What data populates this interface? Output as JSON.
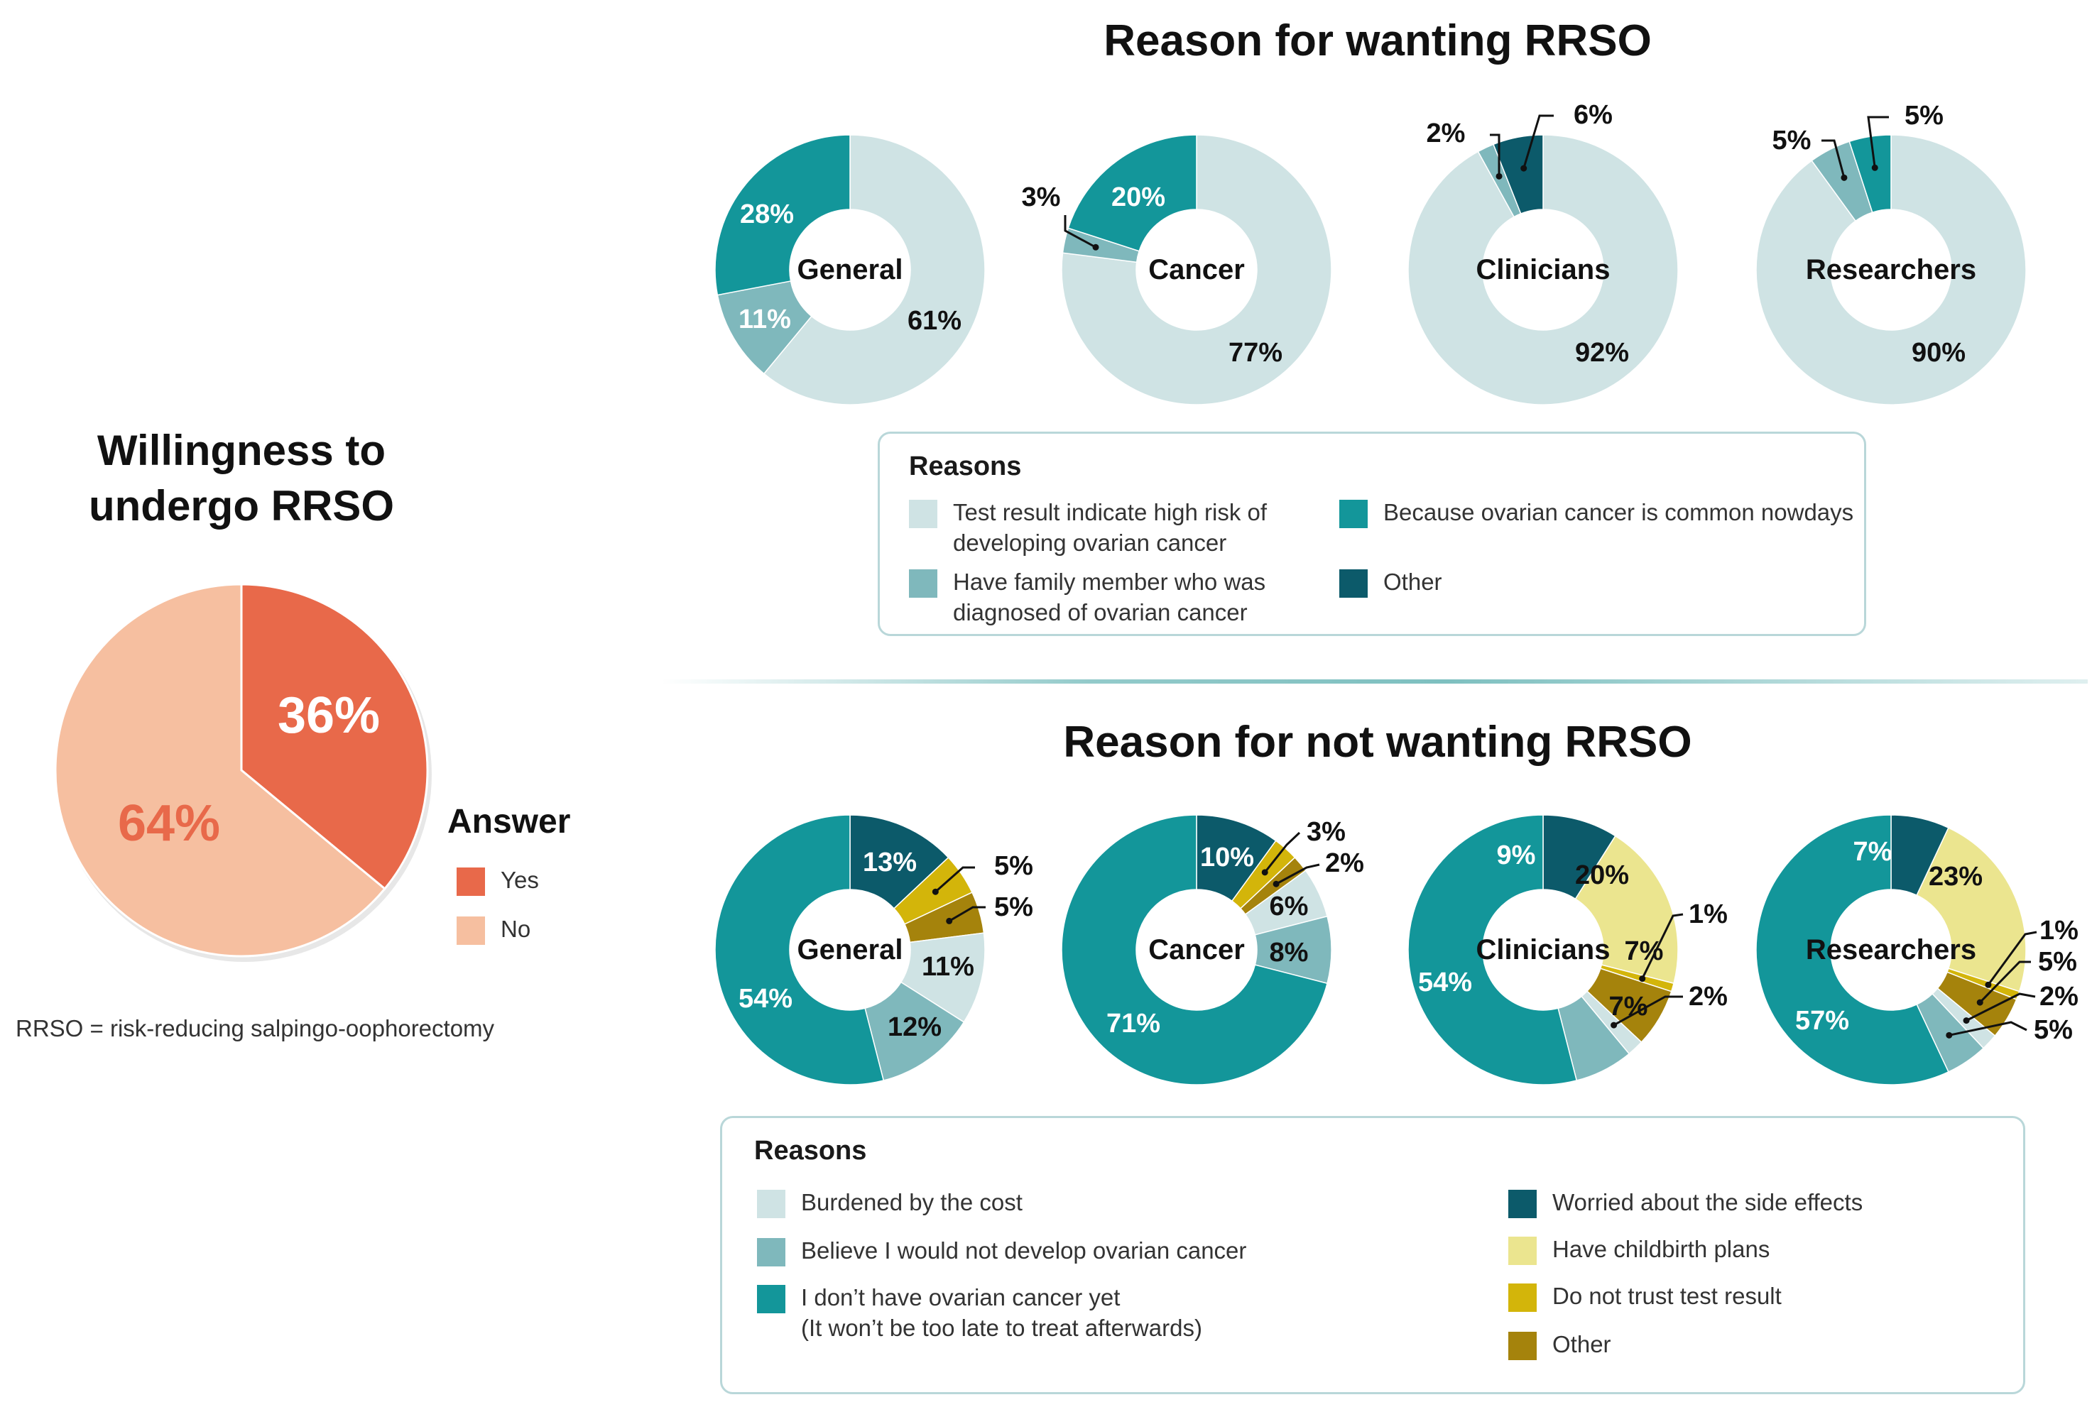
{
  "left": {
    "title_line1": "Willingness to",
    "title_line2": "undergo RRSO",
    "legend_title": "Answer",
    "footnote": "RRSO = risk-reducing salpingo-oophorectomy"
  },
  "top": {
    "title": "Reason for wanting RRSO",
    "legend_title": "Reasons"
  },
  "bottom": {
    "title": "Reason for not wanting RRSO",
    "legend_title": "Reasons"
  },
  "chart_data": [
    {
      "type": "pie",
      "title": "Willingness to undergo RRSO",
      "legend_title": "Answer",
      "slices": [
        {
          "label": "Yes",
          "value": 36,
          "display": "36%",
          "color": "#e8694a"
        },
        {
          "label": "No",
          "value": 64,
          "display": "64%",
          "color": "#f6bfa0"
        }
      ]
    },
    {
      "type": "pie",
      "title": "Reason for wanting RRSO",
      "legend_title": "Reasons",
      "categories": [
        {
          "label": "Test result indicate high risk of\ndeveloping ovarian cancer",
          "color": "#cfe3e4"
        },
        {
          "label": "Have family member who was\ndiagnosed of ovarian cancer",
          "color": "#7fb8bc"
        },
        {
          "label": "Because ovarian cancer is common nowdays",
          "color": "#13969a"
        },
        {
          "label": "Other",
          "color": "#0c5a6a"
        }
      ],
      "donuts": [
        {
          "name": "General",
          "values": [
            61,
            11,
            28,
            0
          ],
          "labels": [
            "61%",
            "11%",
            "28%",
            ""
          ]
        },
        {
          "name": "Cancer",
          "values": [
            77,
            3,
            20,
            0
          ],
          "labels": [
            "77%",
            "3%",
            "20%",
            ""
          ]
        },
        {
          "name": "Clinicians",
          "values": [
            92,
            2,
            0,
            6
          ],
          "labels": [
            "92%",
            "2%",
            "",
            "6%"
          ]
        },
        {
          "name": "Researchers",
          "values": [
            90,
            5,
            5,
            0
          ],
          "labels": [
            "90%",
            "5%",
            "5%",
            ""
          ]
        }
      ]
    },
    {
      "type": "pie",
      "title": "Reason for not wanting RRSO",
      "legend_title": "Reasons",
      "categories": [
        {
          "label": "Worried about the side effects",
          "color": "#0c5a6a"
        },
        {
          "label": "Have childbirth plans",
          "color": "#ebe58f"
        },
        {
          "label": "Do not trust test result",
          "color": "#d3b50a"
        },
        {
          "label": "Other",
          "color": "#a5830c"
        },
        {
          "label": "Burdened by the cost",
          "color": "#cfe3e4"
        },
        {
          "label": "Believe I would not develop ovarian cancer",
          "color": "#7fb8bc"
        },
        {
          "label": "I don’t have ovarian cancer yet\n(It won’t be too late to treat afterwards)",
          "color": "#13969a"
        }
      ],
      "donuts": [
        {
          "name": "General",
          "values": [
            13,
            0,
            5,
            5,
            11,
            12,
            54
          ],
          "labels": [
            "13%",
            "",
            "5%",
            "5%",
            "11%",
            "12%",
            "54%"
          ]
        },
        {
          "name": "Cancer",
          "values": [
            10,
            0,
            3,
            2,
            6,
            8,
            71
          ],
          "labels": [
            "10%",
            "",
            "3%",
            "2%",
            "6%",
            "8%",
            "71%"
          ]
        },
        {
          "name": "Clinicians",
          "values": [
            9,
            20,
            1,
            7,
            2,
            7,
            54
          ],
          "labels": [
            "9%",
            "20%",
            "1%",
            "7%",
            "2%",
            "7%",
            "54%"
          ]
        },
        {
          "name": "Researchers",
          "values": [
            7,
            23,
            1,
            5,
            2,
            5,
            57
          ],
          "labels": [
            "7%",
            "23%",
            "1%",
            "5%",
            "2%",
            "5%",
            "57%"
          ]
        }
      ]
    }
  ]
}
